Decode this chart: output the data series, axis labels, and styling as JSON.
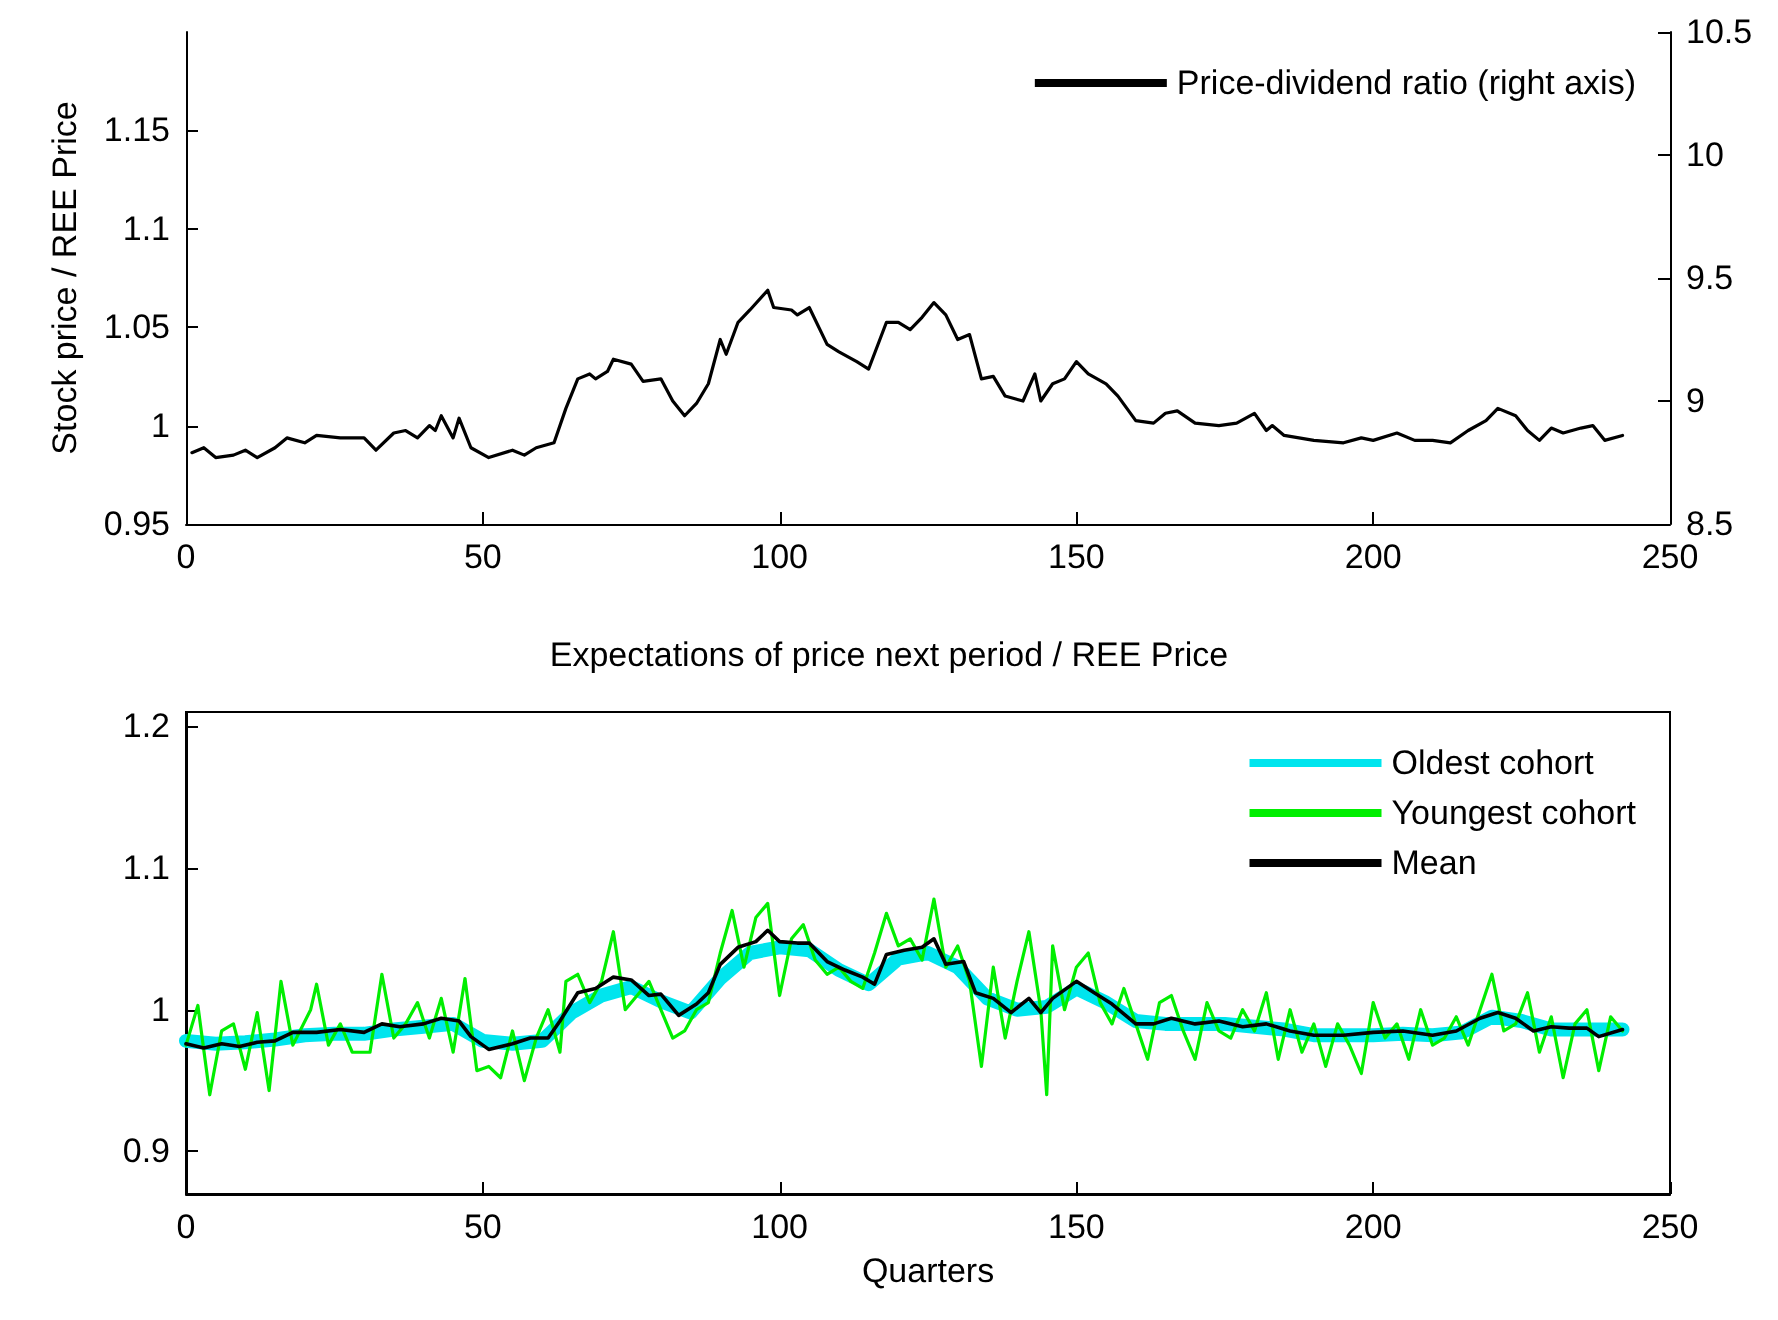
{
  "chart_data": [
    {
      "type": "line",
      "ylabel": "Stock price / REE Price",
      "ylim": [
        0.95,
        1.2
      ],
      "yticks": [
        0.95,
        1,
        1.05,
        1.1,
        1.15
      ],
      "y2lim": [
        8.5,
        10.5
      ],
      "y2ticks": [
        8.5,
        9,
        9.5,
        10,
        10.5
      ],
      "xlim": [
        0,
        250
      ],
      "xticks": [
        0,
        50,
        100,
        150,
        200,
        250
      ],
      "legend": "top right",
      "marker": "none",
      "line_style": "solid",
      "series": [
        {
          "name": "Price-dividend ratio (right axis)",
          "color": "#000000",
          "axis": "y2",
          "x": [
            1,
            3,
            5,
            8,
            10,
            12,
            15,
            17,
            20,
            22,
            26,
            30,
            32,
            35,
            37,
            39,
            41,
            42,
            43,
            45,
            46,
            48,
            51,
            55,
            57,
            59,
            62,
            64,
            66,
            68,
            69,
            71,
            72,
            75,
            77,
            80,
            82,
            84,
            86,
            88,
            90,
            91,
            93,
            95,
            98,
            99,
            102,
            103,
            105,
            108,
            110,
            113,
            115,
            118,
            120,
            122,
            124,
            126,
            128,
            130,
            132,
            134,
            136,
            138,
            141,
            143,
            144,
            146,
            148,
            150,
            152,
            155,
            157,
            160,
            163,
            165,
            167,
            170,
            174,
            177,
            180,
            182,
            183,
            185,
            190,
            195,
            198,
            200,
            204,
            207,
            210,
            213,
            216,
            219,
            221,
            224,
            226,
            228,
            230,
            232,
            235,
            237,
            239,
            242
          ],
          "values": [
            8.79,
            8.81,
            8.77,
            8.78,
            8.8,
            8.77,
            8.81,
            8.85,
            8.83,
            8.86,
            8.85,
            8.85,
            8.8,
            8.87,
            8.88,
            8.85,
            8.9,
            8.88,
            8.94,
            8.85,
            8.93,
            8.81,
            8.77,
            8.8,
            8.78,
            8.81,
            8.83,
            8.97,
            9.09,
            9.11,
            9.09,
            9.12,
            9.17,
            9.15,
            9.08,
            9.09,
            9.0,
            8.94,
            8.99,
            9.07,
            9.25,
            9.19,
            9.32,
            9.37,
            9.45,
            9.38,
            9.37,
            9.35,
            9.38,
            9.23,
            9.2,
            9.16,
            9.13,
            9.32,
            9.32,
            9.29,
            9.34,
            9.4,
            9.35,
            9.25,
            9.27,
            9.09,
            9.1,
            9.02,
            9.0,
            9.11,
            9.0,
            9.07,
            9.09,
            9.16,
            9.11,
            9.07,
            9.02,
            8.92,
            8.91,
            8.95,
            8.96,
            8.91,
            8.9,
            8.91,
            8.95,
            8.88,
            8.9,
            8.86,
            8.84,
            8.83,
            8.85,
            8.84,
            8.87,
            8.84,
            8.84,
            8.83,
            8.88,
            8.92,
            8.97,
            8.94,
            8.88,
            8.84,
            8.89,
            8.87,
            8.89,
            8.9,
            8.84,
            8.86
          ]
        }
      ]
    },
    {
      "type": "line",
      "title": "Expectations of price next period / REE Price",
      "xlabel": "Quarters",
      "ylim": [
        0.87,
        1.21
      ],
      "yticks": [
        0.9,
        1,
        1.1,
        1.2
      ],
      "xlim": [
        0,
        250
      ],
      "xticks": [
        0,
        50,
        100,
        150,
        200,
        250
      ],
      "legend": "top right",
      "marker": "none",
      "line_style": "solid",
      "series": [
        {
          "name": "Oldest cohort",
          "color": "#00e5ee",
          "x": [
            0,
            5,
            10,
            15,
            20,
            25,
            30,
            35,
            40,
            45,
            50,
            55,
            60,
            65,
            70,
            75,
            80,
            85,
            90,
            95,
            100,
            105,
            110,
            115,
            120,
            125,
            130,
            135,
            140,
            145,
            150,
            155,
            160,
            165,
            170,
            175,
            180,
            185,
            190,
            195,
            200,
            205,
            210,
            215,
            220,
            225,
            230,
            235,
            240,
            242
          ],
          "values": [
            0.978,
            0.976,
            0.977,
            0.979,
            0.982,
            0.983,
            0.983,
            0.986,
            0.988,
            0.99,
            0.978,
            0.976,
            0.978,
            0.998,
            1.01,
            1.016,
            1.006,
            0.998,
            1.022,
            1.04,
            1.044,
            1.042,
            1.028,
            1.018,
            1.036,
            1.04,
            1.03,
            1.008,
            1.0,
            1.002,
            1.015,
            1.005,
            0.992,
            0.99,
            0.99,
            0.99,
            0.988,
            0.986,
            0.982,
            0.982,
            0.982,
            0.983,
            0.982,
            0.984,
            0.995,
            0.992,
            0.986,
            0.986,
            0.986,
            0.986
          ]
        },
        {
          "name": "Youngest cohort",
          "color": "#00ee00",
          "x": [
            0,
            2,
            4,
            6,
            8,
            10,
            12,
            14,
            16,
            18,
            21,
            22,
            24,
            26,
            28,
            31,
            33,
            35,
            37,
            39,
            41,
            43,
            45,
            47,
            49,
            51,
            53,
            55,
            57,
            59,
            61,
            63,
            64,
            66,
            68,
            70,
            72,
            74,
            76,
            78,
            80,
            82,
            84,
            86,
            88,
            90,
            92,
            94,
            96,
            98,
            100,
            102,
            104,
            106,
            108,
            110,
            112,
            114,
            116,
            118,
            120,
            122,
            124,
            126,
            128,
            130,
            132,
            134,
            136,
            138,
            140,
            142,
            144,
            145,
            146,
            148,
            150,
            152,
            154,
            156,
            158,
            160,
            162,
            164,
            166,
            168,
            170,
            172,
            174,
            176,
            178,
            180,
            182,
            184,
            186,
            188,
            190,
            192,
            194,
            196,
            198,
            200,
            202,
            204,
            206,
            208,
            210,
            212,
            214,
            216,
            218,
            220,
            222,
            224,
            226,
            228,
            230,
            232,
            234,
            236,
            238,
            240,
            242
          ],
          "values": [
            0.975,
            1.003,
            0.94,
            0.985,
            0.99,
            0.958,
            0.998,
            0.943,
            1.02,
            0.975,
            1.0,
            1.018,
            0.975,
            0.99,
            0.97,
            0.97,
            1.025,
            0.98,
            0.99,
            1.005,
            0.98,
            1.008,
            0.97,
            1.022,
            0.957,
            0.96,
            0.952,
            0.985,
            0.95,
            0.98,
            1.0,
            0.97,
            1.02,
            1.025,
            1.005,
            1.02,
            1.055,
            1.0,
            1.01,
            1.02,
            1.0,
            0.98,
            0.985,
            1.0,
            1.005,
            1.04,
            1.07,
            1.03,
            1.065,
            1.075,
            1.01,
            1.05,
            1.06,
            1.035,
            1.025,
            1.03,
            1.02,
            1.015,
            1.04,
            1.068,
            1.045,
            1.05,
            1.035,
            1.078,
            1.03,
            1.045,
            1.02,
            0.96,
            1.03,
            0.98,
            1.02,
            1.055,
            1.0,
            0.94,
            1.045,
            1.0,
            1.03,
            1.04,
            1.005,
            0.99,
            1.015,
            0.99,
            0.965,
            1.005,
            1.01,
            0.985,
            0.965,
            1.005,
            0.985,
            0.98,
            1.0,
            0.985,
            1.012,
            0.965,
            1.0,
            0.97,
            0.99,
            0.96,
            0.99,
            0.975,
            0.955,
            1.005,
            0.98,
            0.99,
            0.965,
            1.0,
            0.975,
            0.98,
            0.995,
            0.975,
            1.0,
            1.025,
            0.985,
            0.99,
            1.012,
            0.97,
            0.995,
            0.952,
            0.99,
            1.0,
            0.957,
            0.995,
            0.985
          ]
        },
        {
          "name": "Mean",
          "color": "#000000",
          "x": [
            0,
            3,
            6,
            9,
            12,
            15,
            18,
            22,
            26,
            30,
            33,
            36,
            40,
            43,
            46,
            48,
            51,
            55,
            58,
            61,
            63,
            66,
            69,
            72,
            75,
            78,
            80,
            83,
            86,
            88,
            90,
            93,
            96,
            98,
            100,
            103,
            105,
            108,
            111,
            114,
            116,
            118,
            121,
            124,
            126,
            128,
            131,
            133,
            136,
            139,
            142,
            144,
            146,
            150,
            153,
            156,
            160,
            163,
            166,
            170,
            174,
            178,
            182,
            186,
            190,
            195,
            200,
            205,
            210,
            214,
            218,
            221,
            224,
            227,
            230,
            233,
            236,
            238,
            242
          ],
          "values": [
            0.976,
            0.973,
            0.976,
            0.974,
            0.977,
            0.978,
            0.984,
            0.984,
            0.986,
            0.984,
            0.99,
            0.988,
            0.99,
            0.994,
            0.992,
            0.981,
            0.972,
            0.976,
            0.98,
            0.98,
            0.992,
            1.012,
            1.015,
            1.023,
            1.021,
            1.01,
            1.011,
            0.996,
            1.004,
            1.012,
            1.032,
            1.044,
            1.048,
            1.056,
            1.048,
            1.047,
            1.047,
            1.034,
            1.028,
            1.023,
            1.018,
            1.039,
            1.042,
            1.044,
            1.05,
            1.032,
            1.034,
            1.012,
            1.008,
            0.998,
            1.008,
            0.998,
            1.008,
            1.02,
            1.012,
            1.004,
            0.99,
            0.99,
            0.994,
            0.99,
            0.992,
            0.988,
            0.99,
            0.985,
            0.982,
            0.982,
            0.984,
            0.985,
            0.982,
            0.985,
            0.994,
            0.998,
            0.994,
            0.985,
            0.988,
            0.987,
            0.987,
            0.981,
            0.986
          ]
        }
      ]
    }
  ]
}
